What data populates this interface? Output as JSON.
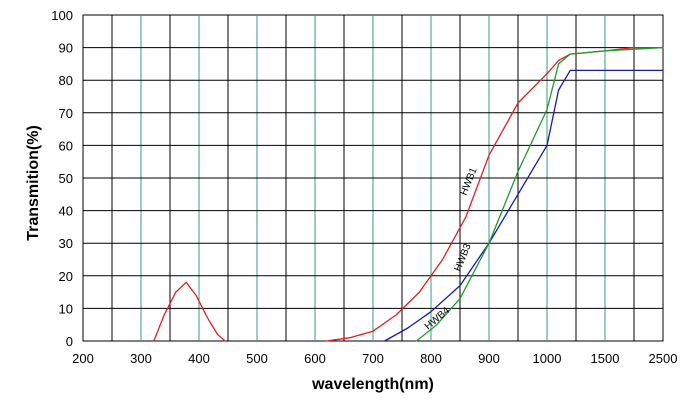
{
  "chart_data": {
    "type": "line",
    "title": "",
    "xlabel": "wavelength(nm)",
    "ylabel": "Transmition(%)",
    "ylim": [
      0,
      100
    ],
    "grid": true,
    "y_ticks": [
      "0",
      "10",
      "20",
      "30",
      "40",
      "50",
      "60",
      "70",
      "80",
      "90",
      "100"
    ],
    "x_ticks": [
      "200",
      "300",
      "400",
      "500",
      "600",
      "700",
      "800",
      "900",
      "1000",
      "1500",
      "2500"
    ],
    "x_scale": "non-uniform: 200–1000 step 100, then 1500, 2500",
    "series": [
      {
        "name": "HWB1",
        "color": "#e02020",
        "points": [
          {
            "x": 322,
            "y": 0
          },
          {
            "x": 340,
            "y": 8
          },
          {
            "x": 360,
            "y": 15
          },
          {
            "x": 378,
            "y": 18
          },
          {
            "x": 395,
            "y": 14
          },
          {
            "x": 415,
            "y": 7
          },
          {
            "x": 432,
            "y": 2
          },
          {
            "x": 445,
            "y": 0
          }
        ]
      },
      {
        "name": "HWB1",
        "color": "#e02020",
        "points": [
          {
            "x": 620,
            "y": 0
          },
          {
            "x": 660,
            "y": 1
          },
          {
            "x": 700,
            "y": 3
          },
          {
            "x": 740,
            "y": 8
          },
          {
            "x": 780,
            "y": 15
          },
          {
            "x": 820,
            "y": 25
          },
          {
            "x": 860,
            "y": 38
          },
          {
            "x": 900,
            "y": 57
          },
          {
            "x": 950,
            "y": 73
          },
          {
            "x": 1000,
            "y": 82
          },
          {
            "x": 1100,
            "y": 86
          },
          {
            "x": 1200,
            "y": 88
          },
          {
            "x": 1500,
            "y": 89
          },
          {
            "x": 2000,
            "y": 90
          },
          {
            "x": 2500,
            "y": 90
          }
        ]
      },
      {
        "name": "HWB3",
        "color": "#1a1aa8",
        "points": [
          {
            "x": 720,
            "y": 0
          },
          {
            "x": 760,
            "y": 4
          },
          {
            "x": 800,
            "y": 9
          },
          {
            "x": 850,
            "y": 17
          },
          {
            "x": 900,
            "y": 30
          },
          {
            "x": 950,
            "y": 45
          },
          {
            "x": 1000,
            "y": 60
          },
          {
            "x": 1100,
            "y": 77
          },
          {
            "x": 1200,
            "y": 83
          },
          {
            "x": 1500,
            "y": 83
          },
          {
            "x": 2500,
            "y": 83
          }
        ]
      },
      {
        "name": "HWB4",
        "color": "#1e9a2e",
        "points": [
          {
            "x": 775,
            "y": 0
          },
          {
            "x": 810,
            "y": 5
          },
          {
            "x": 850,
            "y": 13
          },
          {
            "x": 900,
            "y": 30
          },
          {
            "x": 950,
            "y": 52
          },
          {
            "x": 1000,
            "y": 71
          },
          {
            "x": 1100,
            "y": 85
          },
          {
            "x": 1200,
            "y": 88
          },
          {
            "x": 1500,
            "y": 89
          },
          {
            "x": 2500,
            "y": 90
          }
        ]
      }
    ]
  },
  "curve_labels": [
    "HWB1",
    "HWB3",
    "HWB4"
  ]
}
